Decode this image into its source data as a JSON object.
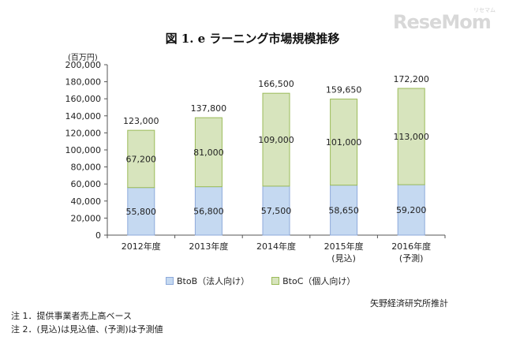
{
  "logo": {
    "text": "ReseMom",
    "ruby": "リセマム"
  },
  "chart_data": {
    "type": "bar",
    "stacked": true,
    "title": "図 1. e ラーニング市場規模推移",
    "unit": "(百万円)",
    "categories": [
      {
        "label": "2012年度",
        "sublabel": ""
      },
      {
        "label": "2013年度",
        "sublabel": ""
      },
      {
        "label": "2014年度",
        "sublabel": ""
      },
      {
        "label": "2015年度",
        "sublabel": "(見込)"
      },
      {
        "label": "2016年度",
        "sublabel": "(予測)"
      }
    ],
    "series": [
      {
        "name": "BtoB（法人向け）",
        "color": "#c5d9f1",
        "border": "#8eaadb",
        "values": [
          55800,
          56800,
          57500,
          58650,
          59200
        ]
      },
      {
        "name": "BtoC（個人向け）",
        "color": "#d7e4bd",
        "border": "#9bbb59",
        "values": [
          67200,
          81000,
          109000,
          101000,
          113000
        ]
      }
    ],
    "totals": [
      123000,
      137800,
      166500,
      159650,
      172200
    ],
    "ylim": [
      0,
      200000
    ],
    "yticks": [
      "0",
      "20,000",
      "40,000",
      "60,000",
      "80,000",
      "100,000",
      "120,000",
      "140,000",
      "160,000",
      "180,000",
      "200,000"
    ],
    "value_labels": {
      "btob": [
        "55,800",
        "56,800",
        "57,500",
        "58,650",
        "59,200"
      ],
      "btoc": [
        "67,200",
        "81,000",
        "109,000",
        "101,000",
        "113,000"
      ],
      "totals": [
        "123,000",
        "137,800",
        "166,500",
        "159,650",
        "172,200"
      ]
    },
    "legend": {
      "position": "bottom",
      "btob_label": "BtoB（法人向け）",
      "btoc_label": "BtoC（個人向け）"
    },
    "grid": false
  },
  "source": "矢野経済研究所推計",
  "notes": [
    "注 1．提供事業者売上高ベース",
    "注 2．(見込)は見込値、(予測)は予測値"
  ]
}
